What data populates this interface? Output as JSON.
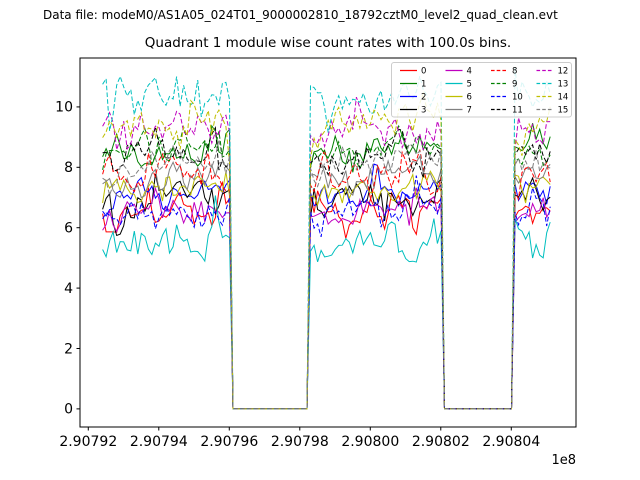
{
  "header": {
    "datafile": "Data file: modeM0/AS1A05_024T01_9000002810_18792cztM0_level2_quad_clean.evt",
    "title": "Quadrant 1 module wise count rates with 100.0s bins."
  },
  "chart_data": {
    "type": "line",
    "title": "Quadrant 1 module wise count rates with 100.0s bins.",
    "xlabel": "",
    "ylabel": "",
    "x_axis": {
      "ticks": [
        "2.90792",
        "2.90794",
        "2.90796",
        "2.90798",
        "2.90800",
        "2.90802",
        "2.90804"
      ],
      "tick_values": [
        290792000,
        290794000,
        290796000,
        290798000,
        290800000,
        290802000,
        290804000
      ],
      "offset_label": "1e8",
      "xlim": [
        290791765,
        290805836
      ]
    },
    "y_axis": {
      "ticks": [
        "0",
        "2",
        "4",
        "6",
        "8",
        "10"
      ],
      "tick_values": [
        0,
        2,
        4,
        6,
        8,
        10
      ],
      "ylim": [
        -0.6,
        11.62
      ]
    },
    "grid": false,
    "bin_seconds": 100,
    "time_start": 290792405,
    "time_end": 290805196,
    "gti_segments": [
      [
        290792405,
        290796080
      ],
      [
        290798230,
        290802020
      ],
      [
        290804040,
        290805196
      ]
    ],
    "gap_value": 0,
    "legend": {
      "position": "upper-right",
      "columns": 4,
      "rows": 4
    },
    "series": [
      {
        "id": 0,
        "label": "0",
        "color": "#ff0000",
        "linestyle": "solid",
        "mean_rate": 6.6,
        "noise_sigma": 0.3,
        "edge_boost": 0
      },
      {
        "id": 1,
        "label": "1",
        "color": "#008000",
        "linestyle": "solid",
        "mean_rate": 8.6,
        "noise_sigma": 0.3,
        "edge_boost": 0
      },
      {
        "id": 2,
        "label": "2",
        "color": "#0000ff",
        "linestyle": "solid",
        "mean_rate": 7.1,
        "noise_sigma": 0.28,
        "edge_boost": 0
      },
      {
        "id": 3,
        "label": "3",
        "color": "#000000",
        "linestyle": "solid",
        "mean_rate": 6.9,
        "noise_sigma": 0.32,
        "edge_boost": 0
      },
      {
        "id": 4,
        "label": "4",
        "color": "#bf00bf",
        "linestyle": "solid",
        "mean_rate": 6.5,
        "noise_sigma": 0.28,
        "edge_boost": 0
      },
      {
        "id": 5,
        "label": "5",
        "color": "#00bfbf",
        "linestyle": "solid",
        "mean_rate": 5.5,
        "noise_sigma": 0.35,
        "edge_boost": 0
      },
      {
        "id": 6,
        "label": "6",
        "color": "#bfbf00",
        "linestyle": "solid",
        "mean_rate": 7.3,
        "noise_sigma": 0.28,
        "edge_boost": 0
      },
      {
        "id": 7,
        "label": "7",
        "color": "#808080",
        "linestyle": "solid",
        "mean_rate": 7.7,
        "noise_sigma": 0.28,
        "edge_boost": 0
      },
      {
        "id": 8,
        "label": "8",
        "color": "#ff0000",
        "linestyle": "dashed",
        "mean_rate": 7.8,
        "noise_sigma": 0.3,
        "edge_boost": 0
      },
      {
        "id": 9,
        "label": "9",
        "color": "#008000",
        "linestyle": "dashed",
        "mean_rate": 8.6,
        "noise_sigma": 0.3,
        "edge_boost": 0
      },
      {
        "id": 10,
        "label": "10",
        "color": "#0000ff",
        "linestyle": "dashed",
        "mean_rate": 6.6,
        "noise_sigma": 0.28,
        "edge_boost": 0
      },
      {
        "id": 11,
        "label": "11",
        "color": "#000000",
        "linestyle": "dashed",
        "mean_rate": 8.4,
        "noise_sigma": 0.3,
        "edge_boost": 0
      },
      {
        "id": 12,
        "label": "12",
        "color": "#bf00bf",
        "linestyle": "dashed",
        "mean_rate": 9.3,
        "noise_sigma": 0.32,
        "edge_boost": 0
      },
      {
        "id": 13,
        "label": "13",
        "color": "#00bfbf",
        "linestyle": "dashed",
        "mean_rate": 10.4,
        "noise_sigma": 0.42,
        "edge_boost": 0.7
      },
      {
        "id": 14,
        "label": "14",
        "color": "#bfbf00",
        "linestyle": "dashed",
        "mean_rate": 9.4,
        "noise_sigma": 0.32,
        "edge_boost": 0
      },
      {
        "id": 15,
        "label": "15",
        "color": "#808080",
        "linestyle": "dashed",
        "mean_rate": 8.1,
        "noise_sigma": 0.3,
        "edge_boost": 0
      }
    ]
  }
}
